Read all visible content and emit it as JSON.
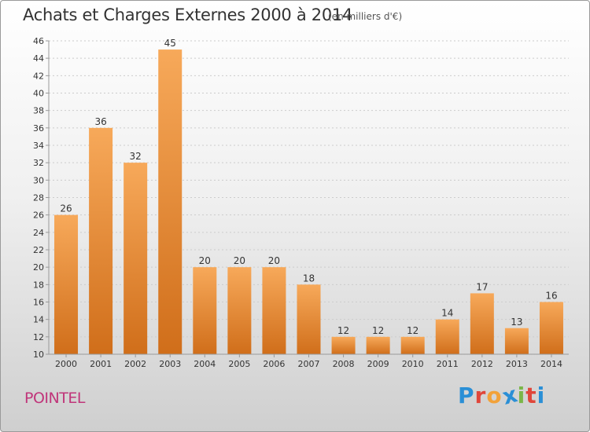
{
  "header": {
    "title": "Achats et Charges Externes 2000 à 2014",
    "unit": "(en milliers d'€)"
  },
  "footer": {
    "commune": "POINTEL"
  },
  "brand": {
    "name": "Proxiti",
    "letters": [
      "P",
      "r",
      "o",
      "x",
      "i",
      "t",
      "i"
    ],
    "letter_colors": [
      "#2a8fd6",
      "#e0463a",
      "#f2a23a",
      "#2a8fd6",
      "#7ab648",
      "#e0463a",
      "#2a8fd6"
    ]
  },
  "colors": {
    "bar_light": "#f7a95a",
    "bar_dark": "#d06e1a",
    "axis": "#999999",
    "grid": "#cccccc"
  },
  "chart_data": {
    "type": "bar",
    "title": "Achats et Charges Externes 2000 à 2014",
    "subtitle": "(en milliers d'€)",
    "categories": [
      "2000",
      "2001",
      "2002",
      "2003",
      "2004",
      "2005",
      "2006",
      "2007",
      "2008",
      "2009",
      "2010",
      "2011",
      "2012",
      "2013",
      "2014"
    ],
    "values": [
      26,
      36,
      32,
      45,
      20,
      20,
      20,
      18,
      12,
      12,
      12,
      14,
      17,
      13,
      16
    ],
    "ylim": [
      10,
      46
    ],
    "yticks": [
      10,
      12,
      14,
      16,
      18,
      20,
      22,
      24,
      26,
      28,
      30,
      32,
      34,
      36,
      38,
      40,
      42,
      44,
      46
    ],
    "grid": true,
    "data_labels": true
  }
}
